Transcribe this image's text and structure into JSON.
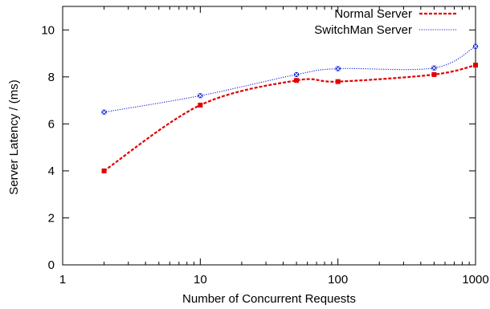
{
  "chart_data": {
    "type": "line",
    "title": "",
    "xlabel": "Number of Concurrent Requests",
    "ylabel": "Server Latency / (ms)",
    "x_scale": "log",
    "xlim": [
      1,
      1000
    ],
    "ylim": [
      0,
      11
    ],
    "x_ticks": [
      1,
      10,
      100,
      1000
    ],
    "x_tick_labels": [
      "1",
      "10",
      "100",
      "1000"
    ],
    "y_ticks": [
      0,
      2,
      4,
      6,
      8,
      10
    ],
    "y_tick_labels": [
      "0",
      "2",
      "4",
      "6",
      "8",
      "10"
    ],
    "grid": false,
    "legend_position": "top-right",
    "series": [
      {
        "name": "Normal Server",
        "color": "#e00000",
        "line_style": "dashed",
        "marker": "square",
        "x": [
          2,
          10,
          50,
          100,
          500,
          1000
        ],
        "y": [
          4.0,
          6.8,
          7.85,
          7.8,
          8.1,
          8.5
        ]
      },
      {
        "name": "SwitchMan Server",
        "color": "#1020d0",
        "line_style": "dotted",
        "marker": "x-square",
        "x": [
          2,
          10,
          50,
          100,
          500,
          1000
        ],
        "y": [
          6.5,
          7.2,
          8.1,
          8.35,
          8.38,
          9.3
        ]
      }
    ]
  }
}
